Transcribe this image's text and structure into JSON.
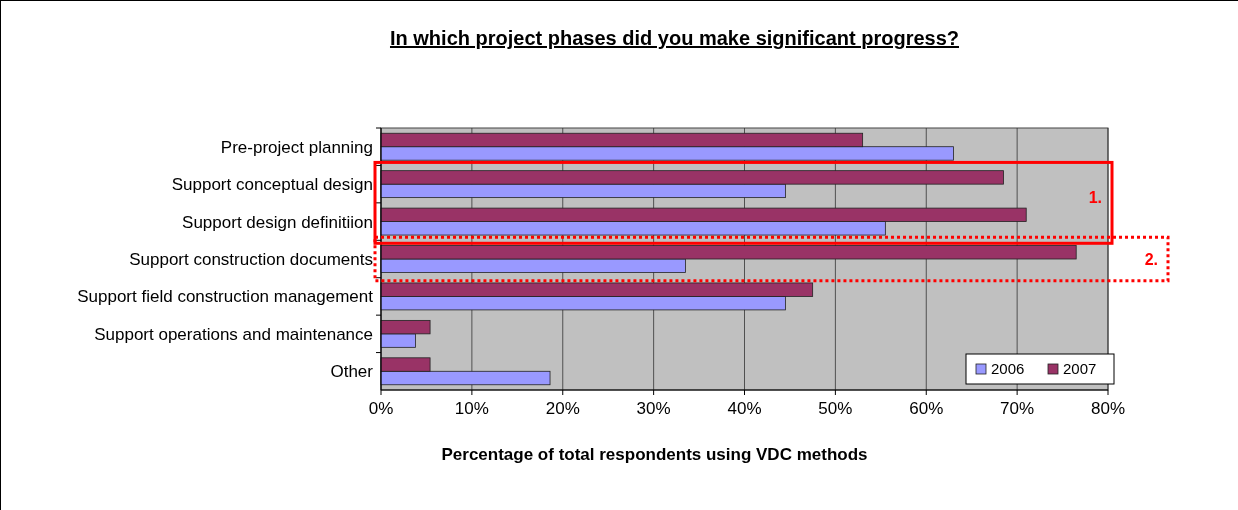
{
  "chart_data": {
    "type": "bar",
    "orientation": "horizontal",
    "title": "In which project phases did you make significant progress?",
    "xlabel": "Percentage of total respondents using VDC methods",
    "categories": [
      "Pre-project planning",
      "Support conceptual design",
      "Support design definitiion",
      "Support construction documents",
      "Support field construction management",
      "Support operations and maintenance",
      "Other"
    ],
    "series": [
      {
        "name": "2006",
        "color": "#9999ff",
        "values": [
          63,
          44.5,
          55.5,
          33.5,
          44.5,
          3.8,
          18.6
        ]
      },
      {
        "name": "2007",
        "color": "#993366",
        "values": [
          53,
          68.5,
          71,
          76.5,
          47.5,
          5.4,
          5.4
        ]
      }
    ],
    "xlim": [
      0,
      80
    ],
    "xticks": [
      {
        "value": 0,
        "label": "0%"
      },
      {
        "value": 10,
        "label": "10%"
      },
      {
        "value": 20,
        "label": "20%"
      },
      {
        "value": 30,
        "label": "30%"
      },
      {
        "value": 40,
        "label": "40%"
      },
      {
        "value": 50,
        "label": "50%"
      },
      {
        "value": 60,
        "label": "60%"
      },
      {
        "value": 70,
        "label": "70%"
      },
      {
        "value": 80,
        "label": "80%"
      }
    ],
    "grid": "x",
    "legend": "bottom right",
    "annotations": [
      "1.",
      "2."
    ]
  }
}
